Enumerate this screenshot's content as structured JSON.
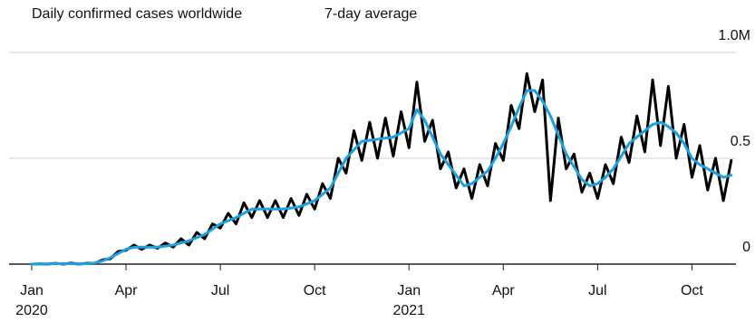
{
  "chart_data": {
    "type": "line",
    "legend_position": "top-left",
    "grid": true,
    "x": [
      0,
      0.25,
      0.5,
      0.75,
      1,
      1.25,
      1.5,
      1.75,
      2,
      2.25,
      2.5,
      2.75,
      3,
      3.25,
      3.5,
      3.75,
      4,
      4.25,
      4.5,
      4.75,
      5,
      5.25,
      5.5,
      5.75,
      6,
      6.25,
      6.5,
      6.75,
      7,
      7.25,
      7.5,
      7.75,
      8,
      8.25,
      8.5,
      8.75,
      9,
      9.25,
      9.5,
      9.75,
      10,
      10.25,
      10.5,
      10.75,
      11,
      11.25,
      11.5,
      11.75,
      12,
      12.25,
      12.5,
      12.75,
      13,
      13.25,
      13.5,
      13.75,
      14,
      14.25,
      14.5,
      14.75,
      15,
      15.25,
      15.5,
      15.75,
      16,
      16.25,
      16.5,
      16.75,
      17,
      17.25,
      17.5,
      17.75,
      18,
      18.25,
      18.5,
      18.75,
      19,
      19.25,
      19.5,
      19.75,
      20,
      20.25,
      20.5,
      20.75,
      21,
      21.25,
      21.5,
      21.75,
      22,
      22.25
    ],
    "series": [
      {
        "name": "Daily confirmed cases worldwide",
        "color": "#000000",
        "values": [
          0,
          0.001,
          0,
          0.004,
          0,
          0.005,
          0,
          0.004,
          0.003,
          0.02,
          0.025,
          0.06,
          0.065,
          0.09,
          0.07,
          0.09,
          0.075,
          0.1,
          0.08,
          0.12,
          0.09,
          0.15,
          0.12,
          0.19,
          0.17,
          0.24,
          0.19,
          0.29,
          0.22,
          0.3,
          0.22,
          0.3,
          0.22,
          0.31,
          0.23,
          0.33,
          0.26,
          0.38,
          0.31,
          0.5,
          0.43,
          0.63,
          0.49,
          0.67,
          0.5,
          0.69,
          0.51,
          0.72,
          0.55,
          0.86,
          0.58,
          0.68,
          0.45,
          0.53,
          0.36,
          0.45,
          0.31,
          0.47,
          0.37,
          0.57,
          0.49,
          0.75,
          0.64,
          0.9,
          0.72,
          0.87,
          0.3,
          0.69,
          0.45,
          0.52,
          0.34,
          0.43,
          0.31,
          0.47,
          0.38,
          0.6,
          0.48,
          0.7,
          0.53,
          0.87,
          0.56,
          0.84,
          0.5,
          0.66,
          0.41,
          0.56,
          0.35,
          0.5,
          0.3,
          0.49
        ]
      },
      {
        "name": "7-day average",
        "color": "#1ba1e2",
        "values": [
          0,
          0,
          0.001,
          0.002,
          0.002,
          0.002,
          0.001,
          0.002,
          0.005,
          0.015,
          0.03,
          0.05,
          0.07,
          0.08,
          0.08,
          0.08,
          0.08,
          0.085,
          0.09,
          0.1,
          0.11,
          0.125,
          0.14,
          0.165,
          0.19,
          0.205,
          0.22,
          0.24,
          0.26,
          0.26,
          0.26,
          0.26,
          0.26,
          0.265,
          0.27,
          0.285,
          0.3,
          0.33,
          0.36,
          0.43,
          0.5,
          0.54,
          0.58,
          0.585,
          0.59,
          0.595,
          0.6,
          0.62,
          0.64,
          0.73,
          0.68,
          0.6,
          0.52,
          0.47,
          0.42,
          0.37,
          0.38,
          0.41,
          0.44,
          0.5,
          0.57,
          0.65,
          0.74,
          0.82,
          0.82,
          0.77,
          0.7,
          0.61,
          0.52,
          0.46,
          0.4,
          0.37,
          0.38,
          0.41,
          0.45,
          0.51,
          0.57,
          0.6,
          0.63,
          0.66,
          0.67,
          0.65,
          0.62,
          0.57,
          0.5,
          0.47,
          0.45,
          0.43,
          0.41,
          0.42
        ]
      }
    ],
    "xlim": [
      -0.72,
      22.4
    ],
    "xticks": [
      {
        "value": 0,
        "label": "Jan"
      },
      {
        "value": 3,
        "label": "Apr"
      },
      {
        "value": 6,
        "label": "Jul"
      },
      {
        "value": 9,
        "label": "Oct"
      },
      {
        "value": 12,
        "label": "Jan"
      },
      {
        "value": 15,
        "label": "Apr"
      },
      {
        "value": 18,
        "label": "Jul"
      },
      {
        "value": 21,
        "label": "Oct"
      }
    ],
    "xtick_years": [
      {
        "value": 0,
        "label": "2020"
      },
      {
        "value": 12,
        "label": "2021"
      }
    ],
    "ylim": [
      0,
      1.0
    ],
    "yticks": [
      0,
      0.5,
      {
        "value": 1.0,
        "label": "1.0M"
      }
    ]
  }
}
